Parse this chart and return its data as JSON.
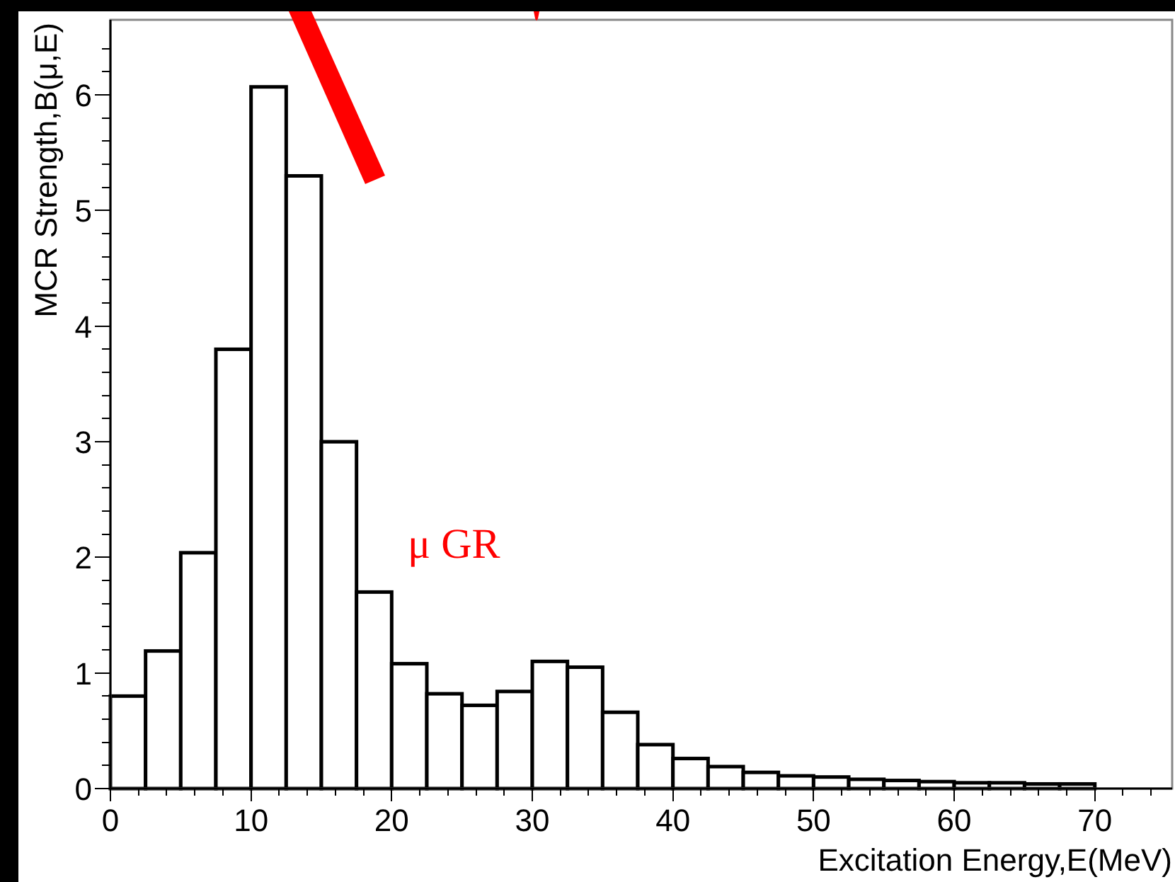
{
  "chart_data": {
    "type": "histogram",
    "xlabel": "Excitation Energy,E(MeV)",
    "ylabel": "MCR Strength,B(μ,E)",
    "bins": [
      0,
      2.5,
      5,
      7.5,
      10,
      12.5,
      15,
      17.5,
      20,
      22.5,
      25,
      27.5,
      30,
      32.5,
      35,
      37.5,
      40,
      42.5,
      45,
      47.5,
      50,
      52.5,
      55,
      57.5,
      60,
      62.5,
      65,
      67.5,
      70
    ],
    "values": [
      0.8,
      1.19,
      2.04,
      3.8,
      6.07,
      5.3,
      3.0,
      1.7,
      1.08,
      0.82,
      0.72,
      0.84,
      1.1,
      1.05,
      0.66,
      0.38,
      0.26,
      0.19,
      0.14,
      0.11,
      0.1,
      0.08,
      0.07,
      0.06,
      0.05,
      0.05,
      0.04,
      0.04
    ],
    "color": "#ffffff",
    "xlim": [
      0,
      75.5
    ],
    "ylim": [
      0,
      6.65
    ],
    "xticks": [
      0,
      {
        "value": 2,
        "label": null
      },
      {
        "value": 4,
        "label": null
      },
      {
        "value": 6,
        "label": null
      },
      {
        "value": 8,
        "label": null
      },
      10,
      {
        "value": 12,
        "label": null
      },
      {
        "value": 14,
        "label": null
      },
      {
        "value": 16,
        "label": null
      },
      {
        "value": 18,
        "label": null
      },
      20,
      {
        "value": 22,
        "label": null
      },
      {
        "value": 24,
        "label": null
      },
      {
        "value": 26,
        "label": null
      },
      {
        "value": 28,
        "label": null
      },
      30,
      {
        "value": 32,
        "label": null
      },
      {
        "value": 34,
        "label": null
      },
      {
        "value": 36,
        "label": null
      },
      {
        "value": 38,
        "label": null
      },
      40,
      {
        "value": 42,
        "label": null
      },
      {
        "value": 44,
        "label": null
      },
      {
        "value": 46,
        "label": null
      },
      {
        "value": 48,
        "label": null
      },
      50,
      {
        "value": 52,
        "label": null
      },
      {
        "value": 54,
        "label": null
      },
      {
        "value": 56,
        "label": null
      },
      {
        "value": 58,
        "label": null
      },
      60,
      {
        "value": 62,
        "label": null
      },
      {
        "value": 64,
        "label": null
      },
      {
        "value": 66,
        "label": null
      },
      {
        "value": 68,
        "label": null
      },
      70,
      {
        "value": 72,
        "label": null
      },
      {
        "value": 74,
        "label": null
      }
    ],
    "yticks": [
      0,
      {
        "value": 0.2,
        "label": null
      },
      {
        "value": 0.4,
        "label": null
      },
      {
        "value": 0.6,
        "label": null
      },
      {
        "value": 0.8,
        "label": null
      },
      1,
      {
        "value": 1.2,
        "label": null
      },
      {
        "value": 1.4,
        "label": null
      },
      {
        "value": 1.6,
        "label": null
      },
      {
        "value": 1.8,
        "label": null
      },
      2,
      {
        "value": 2.2,
        "label": null
      },
      {
        "value": 2.4,
        "label": null
      },
      {
        "value": 2.6,
        "label": null
      },
      {
        "value": 2.8,
        "label": null
      },
      3,
      {
        "value": 3.2,
        "label": null
      },
      {
        "value": 3.4,
        "label": null
      },
      {
        "value": 3.6,
        "label": null
      },
      {
        "value": 3.8,
        "label": null
      },
      4,
      {
        "value": 4.2,
        "label": null
      },
      {
        "value": 4.4,
        "label": null
      },
      {
        "value": 4.6,
        "label": null
      },
      {
        "value": 4.8,
        "label": null
      },
      5,
      {
        "value": 5.2,
        "label": null
      },
      {
        "value": 5.4,
        "label": null
      },
      {
        "value": 5.6,
        "label": null
      },
      {
        "value": 5.8,
        "label": null
      },
      6,
      {
        "value": 6.2,
        "label": null
      },
      {
        "value": 6.4,
        "label": null
      }
    ],
    "annotations": [
      "μ GR"
    ],
    "grid": false
  }
}
